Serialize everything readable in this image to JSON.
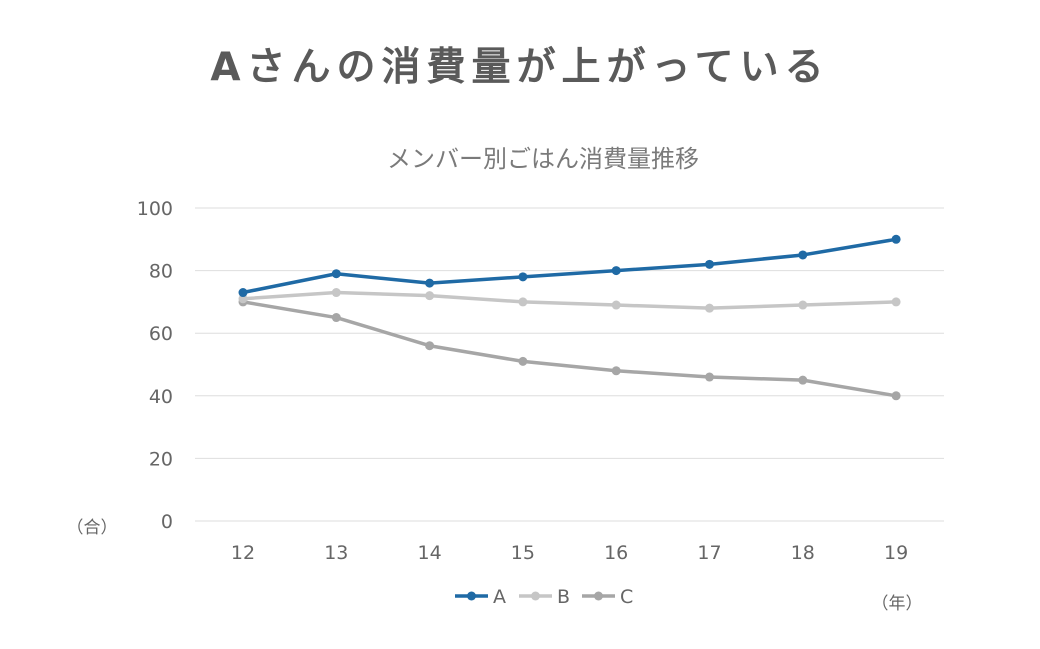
{
  "headline": "Aさんの消費量が上がっている",
  "chart_data": {
    "type": "line",
    "title": "メンバー別ごはん消費量推移",
    "x": [
      "12",
      "13",
      "14",
      "15",
      "16",
      "17",
      "18",
      "19"
    ],
    "y_ticks": [
      "0",
      "20",
      "40",
      "60",
      "80",
      "100"
    ],
    "ylim": [
      0,
      100
    ],
    "y_unit": "（合）",
    "x_unit": "（年）",
    "grid": true,
    "legend_position": "bottom",
    "series": [
      {
        "name": "A",
        "color": "#1f6aa5",
        "values": [
          73,
          79,
          76,
          78,
          80,
          82,
          85,
          90
        ]
      },
      {
        "name": "B",
        "color": "#c6c6c6",
        "values": [
          71,
          73,
          72,
          70,
          69,
          68,
          69,
          70
        ]
      },
      {
        "name": "C",
        "color": "#a6a6a6",
        "values": [
          70,
          65,
          56,
          51,
          48,
          46,
          45,
          40
        ]
      }
    ]
  }
}
